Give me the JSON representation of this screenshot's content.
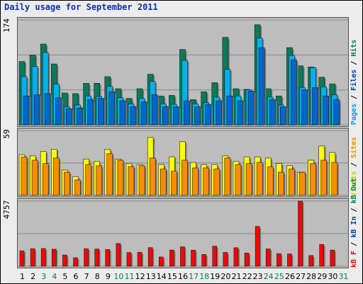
{
  "title": "Daily usage for September 2011",
  "colors": {
    "hits": "#0a7b5a",
    "files": "#00b0f0",
    "pages": "#0066cc",
    "visits": "#ffff00",
    "sites": "#ff8c00",
    "kbytes": "#ff0000",
    "title": "#1030a8",
    "weekend": "#008040"
  },
  "chart_data": [
    {
      "type": "bar",
      "panel": "top",
      "ymax_label": "174",
      "ylim": [
        0,
        174
      ],
      "right_labels": [
        {
          "text": "Pages",
          "color": "#00a0e0"
        },
        {
          "text": " / ",
          "color": "#000000"
        },
        {
          "text": "Files",
          "color": "#0040a0"
        },
        {
          "text": " / ",
          "color": "#000000"
        },
        {
          "text": "Hits",
          "color": "#0a7b5a"
        }
      ],
      "categories": [
        "1",
        "2",
        "3",
        "4",
        "5",
        "6",
        "7",
        "8",
        "9",
        "10",
        "11",
        "12",
        "13",
        "14",
        "15",
        "16",
        "17",
        "18",
        "19",
        "20",
        "21",
        "22",
        "23",
        "24",
        "25",
        "26",
        "27",
        "28",
        "29",
        "30",
        "31"
      ],
      "weekend": [
        3,
        4,
        10,
        11,
        17,
        18,
        24,
        25,
        31
      ],
      "series": [
        {
          "name": "Hits",
          "color": "#0a7b5a",
          "values": [
            105,
            116,
            134,
            101,
            53,
            52,
            69,
            69,
            80,
            60,
            44,
            60,
            84,
            48,
            49,
            125,
            42,
            55,
            70,
            145,
            60,
            59,
            166,
            60,
            48,
            128,
            98,
            96,
            79,
            68,
            0
          ]
        },
        {
          "name": "Files",
          "color": "#00b0f0",
          "values": [
            80,
            97,
            120,
            68,
            30,
            33,
            48,
            47,
            64,
            45,
            35,
            44,
            72,
            35,
            34,
            107,
            35,
            37,
            46,
            92,
            48,
            58,
            144,
            46,
            33,
            115,
            62,
            95,
            63,
            50,
            0
          ]
        },
        {
          "name": "Pages",
          "color": "#0066cc",
          "values": [
            48,
            50,
            52,
            45,
            27,
            28,
            42,
            44,
            55,
            40,
            30,
            38,
            50,
            30,
            30,
            40,
            30,
            34,
            40,
            48,
            40,
            56,
            128,
            42,
            30,
            108,
            58,
            62,
            48,
            42,
            0
          ]
        }
      ]
    },
    {
      "type": "bar",
      "panel": "middle",
      "ymax_label": "59",
      "ylim": [
        0,
        59
      ],
      "right_labels": [
        {
          "text": "Visits",
          "color": "#cccc00"
        },
        {
          "text": " / ",
          "color": "#000000"
        },
        {
          "text": "Sites",
          "color": "#ff8c00"
        }
      ],
      "categories": [
        "1",
        "2",
        "3",
        "4",
        "5",
        "6",
        "7",
        "8",
        "9",
        "10",
        "11",
        "12",
        "13",
        "14",
        "15",
        "16",
        "17",
        "18",
        "19",
        "20",
        "21",
        "22",
        "23",
        "24",
        "25",
        "26",
        "27",
        "28",
        "29",
        "30",
        "31"
      ],
      "series": [
        {
          "name": "Visits",
          "color": "#ffff00",
          "values": [
            37,
            36,
            40,
            42,
            23,
            17,
            33,
            31,
            42,
            33,
            29,
            28,
            53,
            28,
            35,
            49,
            30,
            28,
            28,
            36,
            31,
            35,
            35,
            34,
            29,
            27,
            21,
            32,
            45,
            39,
            0
          ]
        },
        {
          "name": "Sites",
          "color": "#ff8c00",
          "values": [
            35,
            32,
            29,
            34,
            21,
            14,
            28,
            27,
            38,
            32,
            26,
            27,
            34,
            24,
            22,
            32,
            25,
            25,
            24,
            34,
            28,
            29,
            30,
            26,
            21,
            24,
            21,
            29,
            32,
            30,
            0
          ]
        }
      ]
    },
    {
      "type": "bar",
      "panel": "bottom",
      "ymax_label": "4757",
      "ylim": [
        0,
        4757
      ],
      "right_labels": [
        {
          "text": "kB F",
          "color": "#ff0000"
        },
        {
          "text": " / ",
          "color": "#000000"
        },
        {
          "text": "kB In",
          "color": "#0040a0"
        },
        {
          "text": " / ",
          "color": "#000000"
        },
        {
          "text": "kB Out",
          "color": "#0a7b5a"
        }
      ],
      "categories": [
        "1",
        "2",
        "3",
        "4",
        "5",
        "6",
        "7",
        "8",
        "9",
        "10",
        "11",
        "12",
        "13",
        "14",
        "15",
        "16",
        "17",
        "18",
        "19",
        "20",
        "21",
        "22",
        "23",
        "24",
        "25",
        "26",
        "27",
        "28",
        "29",
        "30",
        "31"
      ],
      "series": [
        {
          "name": "kB F",
          "color": "#ff0000",
          "values": [
            1125,
            1280,
            1295,
            1245,
            820,
            620,
            1280,
            1255,
            1222,
            1660,
            1000,
            1020,
            1360,
            675,
            1180,
            1420,
            1175,
            860,
            1460,
            1010,
            1350,
            965,
            2900,
            1265,
            920,
            900,
            4757,
            780,
            1590,
            1180,
            0
          ]
        }
      ]
    }
  ]
}
